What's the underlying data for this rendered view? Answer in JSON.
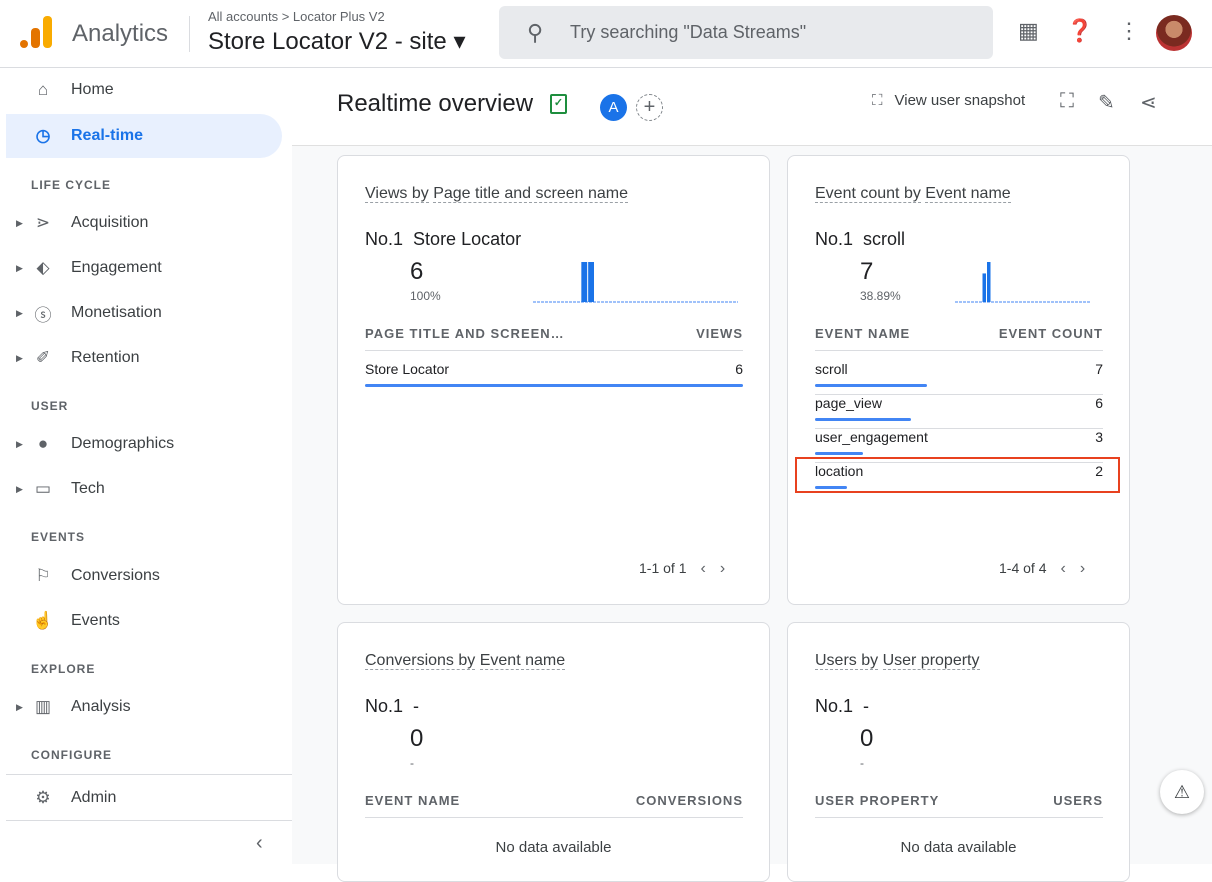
{
  "header": {
    "app_name": "Analytics",
    "breadcrumb": "All accounts > Locator Plus V2",
    "property": "Store Locator V2 - site ▾",
    "search_placeholder": "Try searching \"Data Streams\""
  },
  "sidebar": {
    "home": "Home",
    "realtime": "Real-time",
    "sec_lifecycle": "LIFE CYCLE",
    "acquisition": "Acquisition",
    "engagement": "Engagement",
    "monetisation": "Monetisation",
    "retention": "Retention",
    "sec_user": "USER",
    "demographics": "Demographics",
    "tech": "Tech",
    "sec_events": "EVENTS",
    "conversions": "Conversions",
    "events": "Events",
    "sec_explore": "EXPLORE",
    "analysis": "Analysis",
    "sec_configure": "CONFIGURE",
    "admin": "Admin"
  },
  "toolbar": {
    "title": "Realtime overview",
    "comparison_badge": "A",
    "snapshot": "View user snapshot"
  },
  "cards": {
    "views": {
      "title_a": "Views by",
      "title_b": "Page title and screen name",
      "no1_label": "No.1",
      "no1": "Store Locator",
      "value": "6",
      "pct": "100%",
      "col1": "PAGE TITLE AND SCREEN…",
      "col2": "VIEWS",
      "rows": [
        {
          "name": "Store Locator",
          "value": "6",
          "share": 1.0
        }
      ],
      "pager": "1-1 of 1",
      "spark": [
        0,
        0,
        0,
        0,
        0,
        0,
        0,
        6,
        6,
        0,
        0,
        0,
        0,
        0,
        0,
        0,
        0,
        0,
        0,
        0,
        0,
        0,
        0,
        0,
        0,
        0,
        0,
        0,
        0,
        0
      ]
    },
    "events": {
      "title_a": "Event count by",
      "title_b": "Event name",
      "no1_label": "No.1",
      "no1": "scroll",
      "value": "7",
      "pct": "38.89%",
      "col1": "EVENT NAME",
      "col2": "EVENT COUNT",
      "rows": [
        {
          "name": "scroll",
          "value": "7",
          "share": 1.0
        },
        {
          "name": "page_view",
          "value": "6",
          "share": 0.86
        },
        {
          "name": "user_engagement",
          "value": "3",
          "share": 0.43
        },
        {
          "name": "location",
          "value": "2",
          "share": 0.29
        }
      ],
      "pager": "1-4 of 4",
      "spark": [
        0,
        0,
        0,
        0,
        0,
        0,
        5,
        7,
        0,
        0,
        0,
        0,
        0,
        0,
        0,
        0,
        0,
        0,
        0,
        0,
        0,
        0,
        0,
        0,
        0,
        0,
        0,
        0,
        0,
        0
      ]
    },
    "conversions": {
      "title_a": "Conversions by",
      "title_b": "Event name",
      "no1_label": "No.1",
      "no1": "-",
      "value": "0",
      "pct": "-",
      "col1": "EVENT NAME",
      "col2": "CONVERSIONS",
      "nodata": "No data available"
    },
    "users": {
      "title_a": "Users by",
      "title_b": "User property",
      "no1_label": "No.1",
      "no1": "-",
      "value": "0",
      "pct": "-",
      "col1": "USER PROPERTY",
      "col2": "USERS",
      "nodata": "No data available"
    }
  },
  "colors": {
    "accent": "#1a73e8",
    "highlight": "#e8411f",
    "bar": "#4285f4"
  }
}
